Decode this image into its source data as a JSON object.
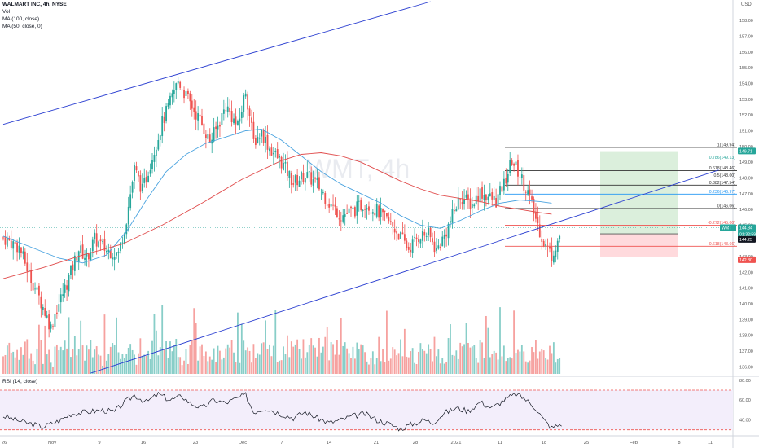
{
  "header": {
    "symbol_line": "WALMART INC, 4h, NYSE",
    "indicators": [
      "Vol",
      "MA (100, close)",
      "MA (50, close, 0)"
    ],
    "currency": "USD",
    "rsi_title": "RSI (14, close)",
    "watermark": "WMT, 4h"
  },
  "colors": {
    "up": "#26a69a",
    "down": "#ef5350",
    "ma50": "#4aa3df",
    "ma100": "#e04b4b",
    "trend": "#2b3fd1",
    "rsi": "#131722",
    "target_zone": "#c8e6c9",
    "stop_zone": "#ffcdd2"
  },
  "chart_data": {
    "type": "candlestick",
    "price_axis": {
      "range": [
        135.5,
        159.2
      ],
      "ticks": [
        "158.00",
        "157.00",
        "156.00",
        "155.00",
        "154.00",
        "153.00",
        "152.00",
        "151.00",
        "150.00",
        "149.00",
        "148.00",
        "147.00",
        "146.00",
        "145.00",
        "144.00",
        "143.00",
        "142.00",
        "141.00",
        "140.00",
        "139.00",
        "138.00",
        "137.00",
        "136.00"
      ]
    },
    "rsi_axis": {
      "range": [
        24,
        84
      ],
      "ticks": [
        "80.00",
        "60.00",
        "40.00"
      ],
      "bands": [
        70,
        30
      ]
    },
    "time_axis": [
      "26",
      "Nov",
      "9",
      "16",
      "23",
      "Dec",
      "7",
      "14",
      "21",
      "28",
      "2021",
      "11",
      "18",
      "25",
      "Feb",
      "8",
      "11"
    ],
    "ohlc_keypoints": [
      [
        0,
        144.2
      ],
      [
        8,
        143.6
      ],
      [
        14,
        141.6
      ],
      [
        20,
        139.8
      ],
      [
        24,
        138.5
      ],
      [
        26,
        139.4
      ],
      [
        32,
        141.3
      ],
      [
        38,
        143.5
      ],
      [
        42,
        142.9
      ],
      [
        46,
        144.1
      ],
      [
        52,
        143.4
      ],
      [
        58,
        143.2
      ],
      [
        62,
        145.4
      ],
      [
        66,
        148.6
      ],
      [
        70,
        147.2
      ],
      [
        76,
        149.8
      ],
      [
        80,
        151.5
      ],
      [
        84,
        152.8
      ],
      [
        88,
        154.2
      ],
      [
        92,
        153.2
      ],
      [
        96,
        152.3
      ],
      [
        100,
        151.4
      ],
      [
        104,
        150.3
      ],
      [
        108,
        151.3
      ],
      [
        112,
        152.6
      ],
      [
        118,
        151.2
      ],
      [
        122,
        153.6
      ],
      [
        126,
        150.3
      ],
      [
        130,
        150.9
      ],
      [
        134,
        149.9
      ],
      [
        140,
        149.0
      ],
      [
        146,
        147.7
      ],
      [
        152,
        148.2
      ],
      [
        158,
        147.6
      ],
      [
        164,
        146.4
      ],
      [
        170,
        145.6
      ],
      [
        176,
        145.9
      ],
      [
        182,
        146.4
      ],
      [
        188,
        145.9
      ],
      [
        194,
        145.2
      ],
      [
        198,
        144.6
      ],
      [
        204,
        143.5
      ],
      [
        210,
        144.4
      ],
      [
        214,
        144.4
      ],
      [
        218,
        143.4
      ],
      [
        222,
        144.3
      ],
      [
        226,
        145.6
      ],
      [
        230,
        146.8
      ],
      [
        236,
        146.3
      ],
      [
        240,
        147.1
      ],
      [
        244,
        146.8
      ],
      [
        248,
        146.5
      ],
      [
        252,
        147.6
      ],
      [
        256,
        149.1
      ],
      [
        260,
        148.2
      ],
      [
        264,
        147.1
      ],
      [
        268,
        145.4
      ],
      [
        272,
        143.9
      ],
      [
        276,
        143.1
      ],
      [
        280,
        144.3
      ]
    ],
    "moving_averages": [
      {
        "name": "MA (50, close, 0)",
        "points": [
          [
            0,
            144.3
          ],
          [
            14,
            143.6
          ],
          [
            28,
            142.9
          ],
          [
            40,
            142.6
          ],
          [
            52,
            143.1
          ],
          [
            62,
            144.6
          ],
          [
            72,
            146.6
          ],
          [
            82,
            148.4
          ],
          [
            92,
            149.5
          ],
          [
            102,
            150.2
          ],
          [
            112,
            150.6
          ],
          [
            122,
            151.0
          ],
          [
            130,
            151.1
          ],
          [
            140,
            150.4
          ],
          [
            150,
            149.4
          ],
          [
            160,
            148.4
          ],
          [
            170,
            147.6
          ],
          [
            180,
            147.0
          ],
          [
            190,
            146.4
          ],
          [
            200,
            145.6
          ],
          [
            210,
            145.0
          ],
          [
            220,
            144.8
          ],
          [
            230,
            145.3
          ],
          [
            240,
            145.9
          ],
          [
            250,
            146.4
          ],
          [
            260,
            146.6
          ],
          [
            270,
            146.5
          ],
          [
            276,
            146.4
          ]
        ]
      },
      {
        "name": "MA (100, close)",
        "points": [
          [
            0,
            141.6
          ],
          [
            20,
            142.3
          ],
          [
            40,
            143.1
          ],
          [
            60,
            143.8
          ],
          [
            80,
            145.0
          ],
          [
            100,
            146.4
          ],
          [
            120,
            147.9
          ],
          [
            140,
            149.1
          ],
          [
            150,
            149.5
          ],
          [
            160,
            149.6
          ],
          [
            170,
            149.4
          ],
          [
            180,
            149.0
          ],
          [
            190,
            148.4
          ],
          [
            200,
            147.8
          ],
          [
            210,
            147.3
          ],
          [
            220,
            146.9
          ],
          [
            230,
            146.7
          ],
          [
            240,
            146.5
          ],
          [
            250,
            146.2
          ],
          [
            260,
            146.0
          ],
          [
            270,
            145.8
          ],
          [
            276,
            145.7
          ]
        ]
      }
    ],
    "trendlines": [
      {
        "from": [
          0,
          151.4
        ],
        "to": [
          215,
          159.2
        ]
      },
      {
        "from": [
          44,
          135.6
        ],
        "to": [
          360,
          148.5
        ]
      }
    ],
    "fibonacci": [
      {
        "label": "1(149.94)",
        "price": 149.94,
        "color": "#333333"
      },
      {
        "label": "0.786(149.13)",
        "price": 149.13,
        "color": "#26a69a"
      },
      {
        "label": "0.618(148.46)",
        "price": 148.46,
        "color": "#333333"
      },
      {
        "label": "0.5(148.00)",
        "price": 148.0,
        "color": "#333333"
      },
      {
        "label": "0.382(147.54)",
        "price": 147.54,
        "color": "#333333"
      },
      {
        "label": "0.236(146.97)",
        "price": 146.97,
        "color": "#2196f3"
      },
      {
        "label": "0(146.06)",
        "price": 146.06,
        "color": "#333333"
      },
      {
        "label": "-0.272(145.00)",
        "price": 145.0,
        "color": "#ef5350"
      },
      {
        "label": "-0.618(143.66)",
        "price": 143.66,
        "color": "#ef5350"
      }
    ],
    "position": {
      "entry": 144.45,
      "target": 149.7,
      "stop": 143.0
    },
    "price_tags": [
      {
        "text": "149.71",
        "price": 149.71,
        "bg": "#26a69a"
      },
      {
        "text": "WMT",
        "price": 144.84,
        "bg": "#26a69a"
      },
      {
        "text": "144.84",
        "price": 144.84,
        "bg": "#26a69a"
      },
      {
        "text": "01:32:59",
        "price": 144.48,
        "bg": "#26a69a"
      },
      {
        "text": "144.25",
        "price": 144.25,
        "bg": "#131722"
      },
      {
        "text": "142.80",
        "price": 142.8,
        "bg": "#ef5350"
      }
    ],
    "rsi_keypoints": [
      [
        0,
        44
      ],
      [
        10,
        38
      ],
      [
        20,
        33
      ],
      [
        28,
        39
      ],
      [
        34,
        46
      ],
      [
        42,
        48
      ],
      [
        50,
        50
      ],
      [
        56,
        48
      ],
      [
        60,
        56
      ],
      [
        66,
        65
      ],
      [
        72,
        58
      ],
      [
        78,
        66
      ],
      [
        84,
        60
      ],
      [
        90,
        64
      ],
      [
        94,
        57
      ],
      [
        100,
        52
      ],
      [
        106,
        60
      ],
      [
        112,
        57
      ],
      [
        118,
        62
      ],
      [
        122,
        65
      ],
      [
        126,
        48
      ],
      [
        132,
        52
      ],
      [
        140,
        46
      ],
      [
        146,
        42
      ],
      [
        152,
        48
      ],
      [
        158,
        42
      ],
      [
        164,
        37
      ],
      [
        170,
        40
      ],
      [
        176,
        44
      ],
      [
        182,
        46
      ],
      [
        188,
        40
      ],
      [
        194,
        36
      ],
      [
        200,
        31
      ],
      [
        206,
        36
      ],
      [
        212,
        40
      ],
      [
        216,
        37
      ],
      [
        222,
        47
      ],
      [
        228,
        52
      ],
      [
        234,
        49
      ],
      [
        240,
        58
      ],
      [
        246,
        52
      ],
      [
        252,
        60
      ],
      [
        258,
        66
      ],
      [
        262,
        62
      ],
      [
        268,
        52
      ],
      [
        272,
        40
      ],
      [
        276,
        32
      ],
      [
        281,
        36
      ]
    ]
  }
}
